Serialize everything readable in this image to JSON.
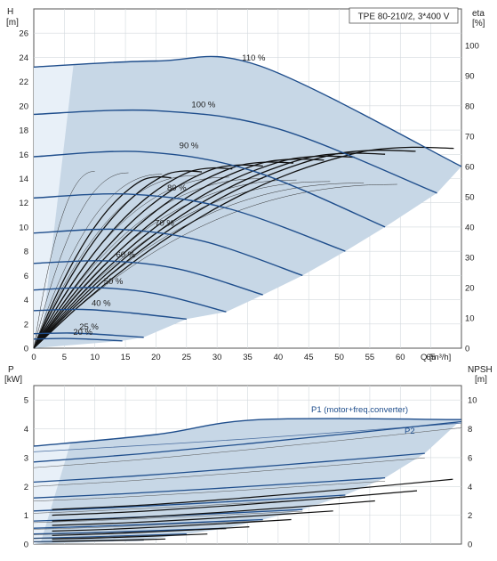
{
  "chart_data": [
    {
      "type": "line",
      "panel": "head",
      "title_box": "TPE 80-210/2, 3*400 V",
      "ylabel": "H\n[m]",
      "y2label": "eta\n[%]",
      "xlabel": "Q [m³/h]",
      "xlim": [
        0,
        70
      ],
      "ylim": [
        0,
        28
      ],
      "y2lim": [
        0,
        112
      ],
      "xticks": [
        "0",
        "5",
        "10",
        "15",
        "20",
        "25",
        "30",
        "35",
        "40",
        "45",
        "50",
        "55",
        "60",
        "65"
      ],
      "yticks": [
        "0",
        "2",
        "4",
        "6",
        "8",
        "10",
        "12",
        "14",
        "16",
        "18",
        "20",
        "22",
        "24",
        "26"
      ],
      "y2ticks": [
        "0",
        "10",
        "20",
        "30",
        "40",
        "50",
        "60",
        "70",
        "80",
        "90",
        "100"
      ],
      "grid": true,
      "colors": {
        "curve": "#1f4e8c",
        "envelope": "#c9d8e6",
        "eta": "#111111",
        "grid": "#cfd6dc"
      },
      "speed_curves": [
        {
          "name": "110 %",
          "q_max": 70,
          "points": [
            [
              0,
              23.2
            ],
            [
              20,
              23.7
            ],
            [
              37,
              23.3
            ],
            [
              70,
              15.0
            ]
          ]
        },
        {
          "name": "100 %",
          "q_max": 66,
          "points": [
            [
              0,
              19.3
            ],
            [
              20,
              19.6
            ],
            [
              40,
              18.1
            ],
            [
              66,
              12.8
            ]
          ]
        },
        {
          "name": "90 %",
          "q_max": 57.5,
          "points": [
            [
              0,
              15.8
            ],
            [
              18,
              16.2
            ],
            [
              36,
              14.6
            ],
            [
              57.5,
              10.0
            ]
          ]
        },
        {
          "name": "80 %",
          "q_max": 51,
          "points": [
            [
              0,
              12.4
            ],
            [
              16,
              12.7
            ],
            [
              32,
              11.5
            ],
            [
              51,
              8.0
            ]
          ]
        },
        {
          "name": "70 %",
          "q_max": 44,
          "points": [
            [
              0,
              9.5
            ],
            [
              14,
              9.8
            ],
            [
              28,
              8.8
            ],
            [
              44,
              6.0
            ]
          ]
        },
        {
          "name": "60 %",
          "q_max": 37.5,
          "points": [
            [
              0,
              7.0
            ],
            [
              12,
              7.2
            ],
            [
              24,
              6.5
            ],
            [
              37.5,
              4.4
            ]
          ]
        },
        {
          "name": "50 %",
          "q_max": 31.5,
          "points": [
            [
              0,
              4.8
            ],
            [
              10,
              5.0
            ],
            [
              20,
              4.5
            ],
            [
              31.5,
              3.0
            ]
          ]
        },
        {
          "name": "40 %",
          "q_max": 25,
          "points": [
            [
              0,
              3.1
            ],
            [
              8,
              3.2
            ],
            [
              16,
              2.9
            ],
            [
              25,
              2.4
            ]
          ]
        },
        {
          "name": "25 %",
          "q_max": 18,
          "points": [
            [
              0,
              1.2
            ],
            [
              6,
              1.25
            ],
            [
              12,
              1.1
            ],
            [
              18,
              0.9
            ]
          ]
        },
        {
          "name": "20 %",
          "q_max": 14.5,
          "points": [
            [
              0,
              0.75
            ],
            [
              5,
              0.8
            ],
            [
              10,
              0.72
            ],
            [
              14.5,
              0.6
            ]
          ]
        }
      ],
      "eta_curves": [
        {
          "peak_q": 18,
          "peak_eta": 58
        },
        {
          "peak_q": 22,
          "peak_eta": 60
        },
        {
          "peak_q": 26,
          "peak_eta": 61
        },
        {
          "peak_q": 30,
          "peak_eta": 62
        },
        {
          "peak_q": 34,
          "peak_eta": 63
        },
        {
          "peak_q": 38,
          "peak_eta": 64
        },
        {
          "peak_q": 42,
          "peak_eta": 65
        },
        {
          "peak_q": 46,
          "peak_eta": 66
        },
        {
          "peak_q": 50,
          "peak_eta": 67
        },
        {
          "peak_q": 55,
          "peak_eta": 68
        }
      ]
    },
    {
      "type": "line",
      "panel": "power",
      "ylabel": "P\n[kW]",
      "y2label": "NPSH\n[m]",
      "xlim": [
        0,
        70
      ],
      "ylim": [
        0,
        5.5
      ],
      "y2lim": [
        0,
        11
      ],
      "yticks": [
        "0",
        "1",
        "2",
        "3",
        "4",
        "5"
      ],
      "y2ticks": [
        "0",
        "2",
        "4",
        "6",
        "8",
        "10"
      ],
      "grid": true,
      "series": [
        {
          "name": "P1 (motor+freq.converter)",
          "points": [
            [
              0,
              3.4
            ],
            [
              20,
              3.8
            ],
            [
              37,
              4.32
            ],
            [
              70,
              4.32
            ]
          ]
        },
        {
          "name": "P2",
          "points": [
            [
              0,
              3.2
            ],
            [
              35,
              3.65
            ],
            [
              70,
              4.2
            ]
          ]
        }
      ],
      "p1_curves": [
        {
          "q_max": 70,
          "p_start": 2.85,
          "p_end": 4.25
        },
        {
          "q_max": 64,
          "p_start": 2.15,
          "p_end": 3.15
        },
        {
          "q_max": 57.5,
          "p_start": 1.6,
          "p_end": 2.3
        },
        {
          "q_max": 51,
          "p_start": 1.15,
          "p_end": 1.7
        },
        {
          "q_max": 44,
          "p_start": 0.8,
          "p_end": 1.2
        },
        {
          "q_max": 37.5,
          "p_start": 0.55,
          "p_end": 0.85
        },
        {
          "q_max": 31.5,
          "p_start": 0.35,
          "p_end": 0.55
        },
        {
          "q_max": 25,
          "p_start": 0.2,
          "p_end": 0.35
        },
        {
          "q_max": 18,
          "p_start": 0.08,
          "p_end": 0.14
        }
      ],
      "npsh_curves": [
        {
          "q_max": 70,
          "n_start": 2.4,
          "n_end": 4.5
        },
        {
          "q_max": 64,
          "n_start": 2.0,
          "n_end": 3.7
        },
        {
          "q_max": 57,
          "n_start": 1.6,
          "n_end": 3.0
        },
        {
          "q_max": 50,
          "n_start": 1.3,
          "n_end": 2.3
        },
        {
          "q_max": 43,
          "n_start": 0.9,
          "n_end": 1.7
        },
        {
          "q_max": 36,
          "n_start": 0.6,
          "n_end": 1.2
        },
        {
          "q_max": 29,
          "n_start": 0.35,
          "n_end": 0.7
        },
        {
          "q_max": 22,
          "n_start": 0.2,
          "n_end": 0.35
        }
      ]
    }
  ]
}
